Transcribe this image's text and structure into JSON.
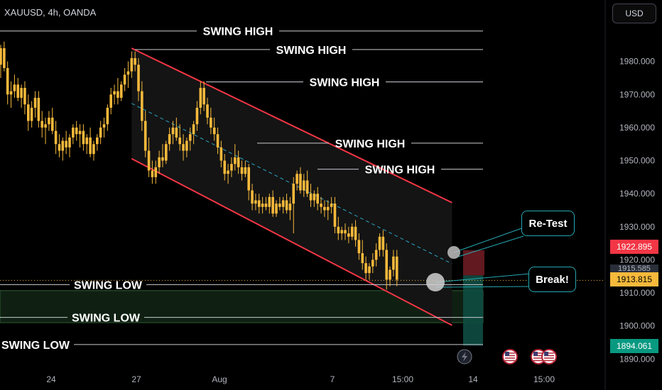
{
  "header": {
    "symbol": "XAUUSD, 4h, OANDA",
    "currency": "USD"
  },
  "price_tags": {
    "resistance": "1922.895",
    "hidden": "1915.585",
    "current": "1913.815",
    "support": "1894.061"
  },
  "colors": {
    "bull": "#f6b93b",
    "bear": "#f6b93b",
    "channel": "#f23645",
    "midline": "#2aa6c9",
    "callout_border": "#26a6b0",
    "support_zone": "#1c3a20",
    "resistance_zone": "#7a1f27",
    "current_tag": "#f6b93b",
    "resistance_tag": "#f23645",
    "support_tag": "#089981"
  },
  "callouts": {
    "retest": "Re-Test",
    "break": "Break!"
  },
  "event_icons": [
    "lightning-icon",
    "us-flag-icon",
    "us-flag-icon",
    "us-flag-icon"
  ],
  "chart_data": {
    "type": "candlestick",
    "instrument": "XAUUSD",
    "timeframe": "4h",
    "ylim": [
      1886,
      1993
    ],
    "y_ticks": [
      1980,
      1970,
      1960,
      1950,
      1940,
      1930,
      1920,
      1910,
      1900,
      1890
    ],
    "y_tick_labels": [
      "1980.000",
      "1970.000",
      "1960.000",
      "1950.000",
      "1940.000",
      "1930.000",
      "1920.000",
      "1910.000",
      "1900.000",
      "1890.000"
    ],
    "x_tick_labels": [
      "24",
      "27",
      "Aug",
      "7",
      "15:00",
      "14",
      "15:00"
    ],
    "annotations": {
      "swing_high": [
        {
          "label": "SWING HIGH",
          "price": 1989.2
        },
        {
          "label": "SWING HIGH",
          "price": 1983.6
        },
        {
          "label": "SWING HIGH",
          "price": 1973.8
        },
        {
          "label": "SWING HIGH",
          "price": 1955.3
        },
        {
          "label": "SWING HIGH",
          "price": 1947.4
        }
      ],
      "swing_low": [
        {
          "label": "SWING LOW",
          "price": 1912.5
        },
        {
          "label": "SWING LOW",
          "price": 1902.6
        },
        {
          "label": "SWING LOW",
          "price": 1894.4
        }
      ]
    },
    "zones": [
      {
        "kind": "support",
        "from": 1901.0,
        "to": 1910.7
      },
      {
        "kind": "resistance",
        "from": 1915.3,
        "to": 1922.9
      }
    ],
    "channel": {
      "upper": [
        {
          "candle": 38,
          "price": 1984.0
        },
        {
          "candle": 131,
          "price": 1937.3
        }
      ],
      "lower": [
        {
          "candle": 38,
          "price": 1950.6
        },
        {
          "candle": 131,
          "price": 1900.2
        }
      ],
      "mid": [
        {
          "candle": 38,
          "price": 1967.3
        },
        {
          "candle": 131,
          "price": 1918.8
        }
      ]
    },
    "candles": [
      [
        1979,
        1985,
        1975,
        1984
      ],
      [
        1984,
        1986,
        1977,
        1978
      ],
      [
        1978,
        1980,
        1967,
        1970
      ],
      [
        1970,
        1974,
        1966,
        1971
      ],
      [
        1971,
        1976,
        1969,
        1973
      ],
      [
        1973,
        1975,
        1968,
        1969
      ],
      [
        1969,
        1973,
        1966,
        1972
      ],
      [
        1972,
        1974,
        1964,
        1967
      ],
      [
        1967,
        1970,
        1959,
        1962
      ],
      [
        1962,
        1968,
        1960,
        1966
      ],
      [
        1966,
        1971,
        1963,
        1969
      ],
      [
        1969,
        1971,
        1960,
        1962
      ],
      [
        1962,
        1965,
        1957,
        1960
      ],
      [
        1960,
        1963,
        1955,
        1961
      ],
      [
        1961,
        1965,
        1959,
        1963
      ],
      [
        1963,
        1966,
        1958,
        1959
      ],
      [
        1959,
        1962,
        1952,
        1955
      ],
      [
        1955,
        1958,
        1951,
        1953
      ],
      [
        1953,
        1957,
        1950,
        1956
      ],
      [
        1956,
        1959,
        1952,
        1954
      ],
      [
        1954,
        1958,
        1951,
        1957
      ],
      [
        1957,
        1961,
        1955,
        1960
      ],
      [
        1960,
        1962,
        1956,
        1958
      ],
      [
        1958,
        1961,
        1954,
        1959
      ],
      [
        1959,
        1961,
        1953,
        1955
      ],
      [
        1955,
        1958,
        1952,
        1957
      ],
      [
        1957,
        1960,
        1951,
        1952
      ],
      [
        1952,
        1956,
        1950,
        1955
      ],
      [
        1955,
        1958,
        1953,
        1957
      ],
      [
        1957,
        1962,
        1955,
        1960
      ],
      [
        1960,
        1963,
        1957,
        1961
      ],
      [
        1961,
        1967,
        1959,
        1966
      ],
      [
        1966,
        1972,
        1964,
        1970
      ],
      [
        1970,
        1973,
        1967,
        1971
      ],
      [
        1971,
        1975,
        1967,
        1969
      ],
      [
        1969,
        1974,
        1968,
        1973
      ],
      [
        1973,
        1978,
        1971,
        1976
      ],
      [
        1976,
        1980,
        1972,
        1977
      ],
      [
        1977,
        1983,
        1975,
        1981
      ],
      [
        1981,
        1983,
        1977,
        1979
      ],
      [
        1979,
        1981,
        1968,
        1971
      ],
      [
        1971,
        1974,
        1959,
        1962
      ],
      [
        1962,
        1965,
        1951,
        1953
      ],
      [
        1953,
        1957,
        1945,
        1947
      ],
      [
        1947,
        1950,
        1943,
        1945
      ],
      [
        1945,
        1950,
        1943,
        1948
      ],
      [
        1948,
        1953,
        1946,
        1951
      ],
      [
        1951,
        1955,
        1948,
        1950
      ],
      [
        1950,
        1956,
        1949,
        1955
      ],
      [
        1955,
        1960,
        1953,
        1958
      ],
      [
        1958,
        1962,
        1955,
        1960
      ],
      [
        1960,
        1963,
        1956,
        1957
      ],
      [
        1957,
        1961,
        1953,
        1955
      ],
      [
        1955,
        1958,
        1950,
        1953
      ],
      [
        1953,
        1957,
        1951,
        1956
      ],
      [
        1956,
        1960,
        1953,
        1958
      ],
      [
        1958,
        1962,
        1955,
        1961
      ],
      [
        1961,
        1968,
        1959,
        1966
      ],
      [
        1966,
        1974,
        1964,
        1972
      ],
      [
        1972,
        1974,
        1965,
        1967
      ],
      [
        1967,
        1969,
        1961,
        1963
      ],
      [
        1963,
        1966,
        1958,
        1960
      ],
      [
        1960,
        1963,
        1956,
        1958
      ],
      [
        1958,
        1960,
        1952,
        1954
      ],
      [
        1954,
        1956,
        1948,
        1950
      ],
      [
        1950,
        1952,
        1944,
        1946
      ],
      [
        1946,
        1949,
        1943,
        1947
      ],
      [
        1947,
        1951,
        1945,
        1949
      ],
      [
        1949,
        1955,
        1947,
        1951
      ],
      [
        1951,
        1953,
        1946,
        1948
      ],
      [
        1948,
        1950,
        1944,
        1946
      ],
      [
        1946,
        1950,
        1945,
        1948
      ],
      [
        1948,
        1949,
        1938,
        1941
      ],
      [
        1941,
        1943,
        1935,
        1937
      ],
      [
        1937,
        1940,
        1935,
        1938
      ],
      [
        1938,
        1940,
        1934,
        1936
      ],
      [
        1936,
        1939,
        1934,
        1937
      ],
      [
        1937,
        1939,
        1935,
        1936
      ],
      [
        1936,
        1940,
        1934,
        1939
      ],
      [
        1939,
        1941,
        1933,
        1934
      ],
      [
        1934,
        1938,
        1933,
        1937
      ],
      [
        1937,
        1939,
        1935,
        1936
      ],
      [
        1936,
        1939,
        1934,
        1938
      ],
      [
        1938,
        1940,
        1934,
        1935
      ],
      [
        1935,
        1939,
        1932,
        1937
      ],
      [
        1937,
        1945,
        1928,
        1943
      ],
      [
        1943,
        1947,
        1941,
        1946
      ],
      [
        1946,
        1948,
        1940,
        1941
      ],
      [
        1941,
        1946,
        1939,
        1944
      ],
      [
        1944,
        1947,
        1939,
        1940
      ],
      [
        1940,
        1943,
        1936,
        1938
      ],
      [
        1938,
        1941,
        1936,
        1940
      ],
      [
        1940,
        1942,
        1935,
        1937
      ],
      [
        1937,
        1939,
        1934,
        1936
      ],
      [
        1936,
        1938,
        1933,
        1935
      ],
      [
        1935,
        1938,
        1932,
        1936
      ],
      [
        1936,
        1939,
        1934,
        1937
      ],
      [
        1937,
        1939,
        1928,
        1930
      ],
      [
        1930,
        1933,
        1926,
        1928
      ],
      [
        1928,
        1930,
        1926,
        1929
      ],
      [
        1929,
        1931,
        1926,
        1928
      ],
      [
        1928,
        1930,
        1925,
        1927
      ],
      [
        1927,
        1931,
        1926,
        1930
      ],
      [
        1930,
        1932,
        1924,
        1926
      ],
      [
        1926,
        1928,
        1920,
        1922
      ],
      [
        1922,
        1926,
        1917,
        1919
      ],
      [
        1919,
        1921,
        1914,
        1916
      ],
      [
        1916,
        1919,
        1914,
        1918
      ],
      [
        1918,
        1922,
        1916,
        1920
      ],
      [
        1920,
        1925,
        1918,
        1923
      ],
      [
        1923,
        1928,
        1921,
        1927
      ],
      [
        1927,
        1929,
        1921,
        1923
      ],
      [
        1923,
        1925,
        1911,
        1914
      ],
      [
        1914,
        1918,
        1912,
        1917
      ],
      [
        1917,
        1923,
        1915,
        1921
      ],
      [
        1921,
        1923,
        1912,
        1914
      ]
    ]
  }
}
